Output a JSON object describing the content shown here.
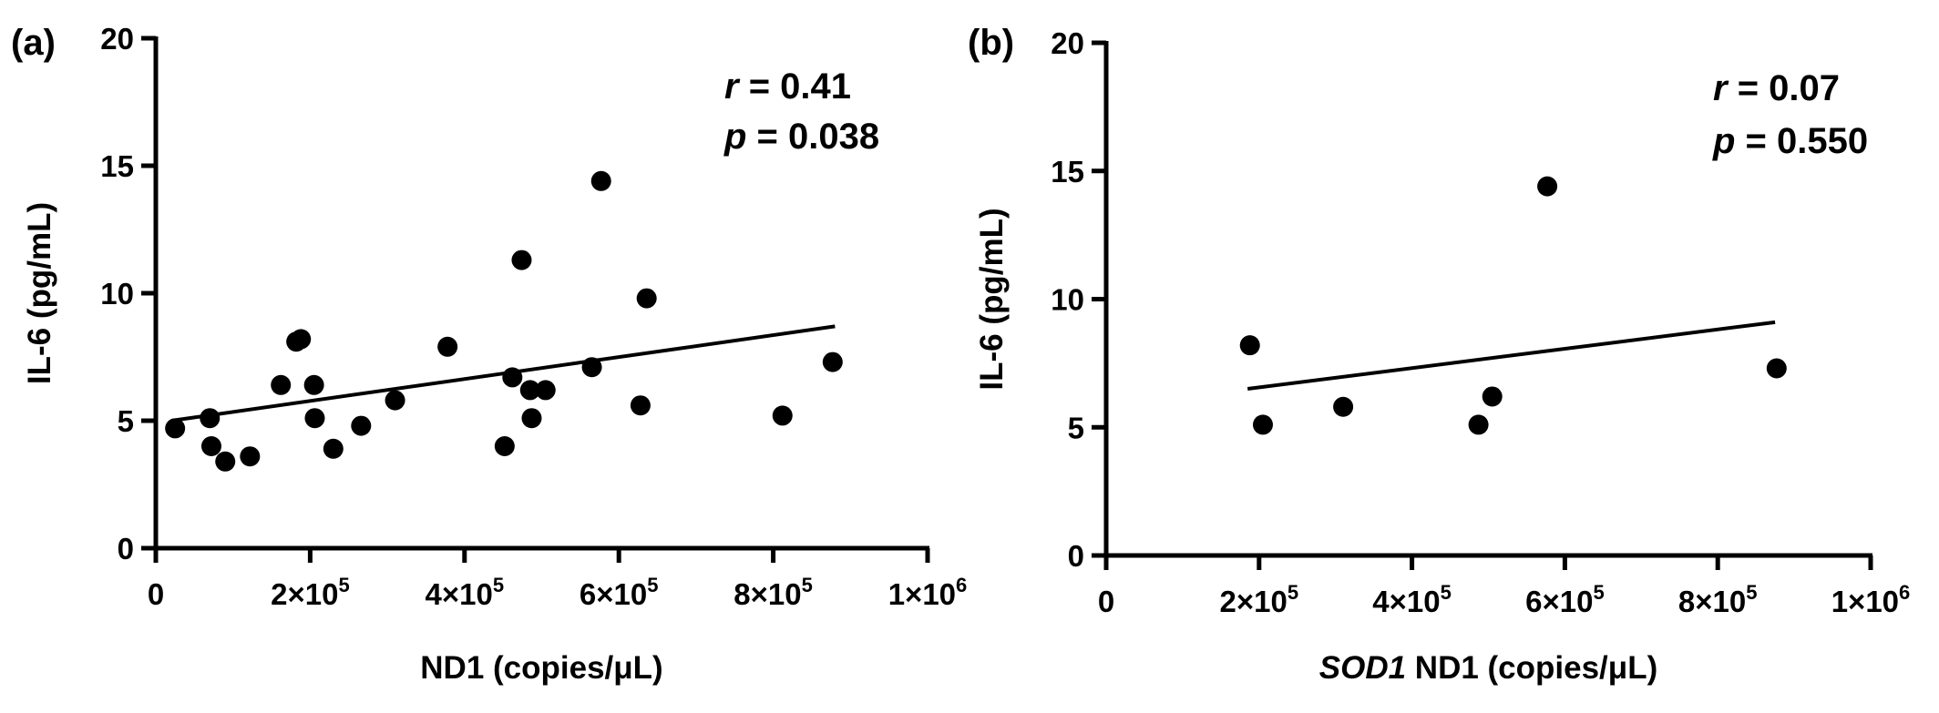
{
  "chart_data": [
    {
      "type": "scatter",
      "panel_label": "(a)",
      "xlabel": "ND1 (copies/μL)",
      "xlabel_italic_prefix": "",
      "ylabel": "IL-6 (pg/mL)",
      "xlim": [
        0,
        1000000
      ],
      "ylim": [
        0,
        20
      ],
      "x_ticks": [
        {
          "value": 0,
          "base": "0",
          "exp": ""
        },
        {
          "value": 200000,
          "base": "2×10",
          "exp": "5"
        },
        {
          "value": 400000,
          "base": "4×10",
          "exp": "5"
        },
        {
          "value": 600000,
          "base": "6×10",
          "exp": "5"
        },
        {
          "value": 800000,
          "base": "8×10",
          "exp": "5"
        },
        {
          "value": 1000000,
          "base": "1×10",
          "exp": "6"
        }
      ],
      "y_ticks": [
        0,
        5,
        10,
        15,
        20
      ],
      "r_label": "r",
      "r_value": "= 0.41",
      "p_label": "p",
      "p_value": "= 0.038",
      "fit_line": {
        "x": [
          20000,
          880000
        ],
        "y": [
          5.0,
          8.7
        ]
      },
      "points": [
        {
          "x": 25000,
          "y": 4.7
        },
        {
          "x": 70000,
          "y": 5.1
        },
        {
          "x": 72000,
          "y": 4.0
        },
        {
          "x": 90000,
          "y": 3.4
        },
        {
          "x": 122000,
          "y": 3.6
        },
        {
          "x": 162000,
          "y": 6.4
        },
        {
          "x": 182000,
          "y": 8.1
        },
        {
          "x": 188000,
          "y": 8.2
        },
        {
          "x": 205000,
          "y": 6.4
        },
        {
          "x": 206000,
          "y": 5.1
        },
        {
          "x": 230000,
          "y": 3.9
        },
        {
          "x": 266000,
          "y": 4.8
        },
        {
          "x": 310000,
          "y": 5.8
        },
        {
          "x": 378000,
          "y": 7.9
        },
        {
          "x": 452000,
          "y": 4.0
        },
        {
          "x": 462000,
          "y": 6.7
        },
        {
          "x": 474000,
          "y": 11.3
        },
        {
          "x": 485000,
          "y": 6.2
        },
        {
          "x": 487000,
          "y": 5.1
        },
        {
          "x": 505000,
          "y": 6.2
        },
        {
          "x": 565000,
          "y": 7.1
        },
        {
          "x": 577000,
          "y": 14.4
        },
        {
          "x": 628000,
          "y": 5.6
        },
        {
          "x": 636000,
          "y": 9.8
        },
        {
          "x": 812000,
          "y": 5.2
        },
        {
          "x": 877000,
          "y": 7.3
        }
      ]
    },
    {
      "type": "scatter",
      "panel_label": "(b)",
      "xlabel": " ND1 (copies/μL)",
      "xlabel_italic_prefix": "SOD1",
      "ylabel": "IL-6 (pg/mL)",
      "xlim": [
        0,
        1000000
      ],
      "ylim": [
        0,
        20
      ],
      "x_ticks": [
        {
          "value": 0,
          "base": "0",
          "exp": ""
        },
        {
          "value": 200000,
          "base": "2×10",
          "exp": "5"
        },
        {
          "value": 400000,
          "base": "4×10",
          "exp": "5"
        },
        {
          "value": 600000,
          "base": "6×10",
          "exp": "5"
        },
        {
          "value": 800000,
          "base": "8×10",
          "exp": "5"
        },
        {
          "value": 1000000,
          "base": "1×10",
          "exp": "6"
        }
      ],
      "y_ticks": [
        0,
        5,
        10,
        15,
        20
      ],
      "r_label": "r",
      "r_value": "= 0.07",
      "p_label": "p",
      "p_value": "= 0.550",
      "fit_line": {
        "x": [
          185000,
          875000
        ],
        "y": [
          6.5,
          9.1
        ]
      },
      "points": [
        {
          "x": 188000,
          "y": 8.2
        },
        {
          "x": 205000,
          "y": 5.1
        },
        {
          "x": 310000,
          "y": 5.8
        },
        {
          "x": 487000,
          "y": 5.1
        },
        {
          "x": 505000,
          "y": 6.2
        },
        {
          "x": 577000,
          "y": 14.4
        },
        {
          "x": 877000,
          "y": 7.3
        }
      ]
    }
  ]
}
